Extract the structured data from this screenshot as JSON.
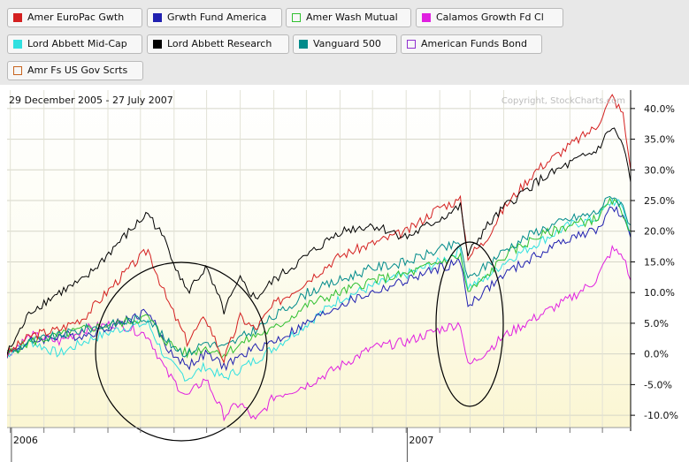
{
  "chart_data": {
    "type": "line",
    "date_range": "29 December 2005 - 27 July 2007",
    "watermark": "Copyright, StockCharts.com",
    "y_axis": {
      "ticks": [
        "40.0%",
        "35.0%",
        "30.0%",
        "25.0%",
        "20.0%",
        "15.0%",
        "10.0%",
        "5.0%",
        "0.0%",
        "-5.0%",
        "-10.0%"
      ],
      "tick_values": [
        40,
        35,
        30,
        25,
        20,
        15,
        10,
        5,
        0,
        -5,
        -10
      ],
      "ylim": [
        -12,
        43
      ],
      "position": "right"
    },
    "x_axis": {
      "labels": [
        "2006",
        "2007"
      ],
      "label_dates": [
        "2006-01-02",
        "2007-01-02"
      ],
      "xlim": [
        "2005-12-29",
        "2007-07-27"
      ]
    },
    "legend_placement": "top",
    "series": [
      {
        "name": "Amer EuroPac Gwth",
        "color": "#d42020",
        "swatch_fill": true,
        "points": [
          [
            "2005-12-29",
            0
          ],
          [
            "2006-01-20",
            3
          ],
          [
            "2006-02-15",
            4
          ],
          [
            "2006-03-10",
            6
          ],
          [
            "2006-04-10",
            12
          ],
          [
            "2006-05-08",
            17
          ],
          [
            "2006-05-25",
            9
          ],
          [
            "2006-06-13",
            2
          ],
          [
            "2006-06-30",
            6
          ],
          [
            "2006-07-17",
            -1
          ],
          [
            "2006-08-01",
            6
          ],
          [
            "2006-08-15",
            4
          ],
          [
            "2006-09-01",
            8
          ],
          [
            "2006-10-02",
            12
          ],
          [
            "2006-11-01",
            16
          ],
          [
            "2006-12-01",
            18
          ],
          [
            "2007-01-02",
            20
          ],
          [
            "2007-02-01",
            24
          ],
          [
            "2007-02-20",
            25
          ],
          [
            "2007-02-27",
            16
          ],
          [
            "2007-03-13",
            18
          ],
          [
            "2007-04-02",
            24
          ],
          [
            "2007-05-01",
            30
          ],
          [
            "2007-06-01",
            34
          ],
          [
            "2007-06-25",
            37
          ],
          [
            "2007-07-10",
            42
          ],
          [
            "2007-07-20",
            39
          ],
          [
            "2007-07-27",
            30
          ]
        ]
      },
      {
        "name": "Grwth Fund America",
        "color": "#2020b0",
        "swatch_fill": true,
        "points": [
          [
            "2005-12-29",
            0
          ],
          [
            "2006-01-20",
            2
          ],
          [
            "2006-02-15",
            3
          ],
          [
            "2006-03-10",
            3
          ],
          [
            "2006-04-10",
            5
          ],
          [
            "2006-05-08",
            7
          ],
          [
            "2006-05-25",
            1
          ],
          [
            "2006-06-13",
            -2
          ],
          [
            "2006-06-30",
            0
          ],
          [
            "2006-07-17",
            -2
          ],
          [
            "2006-08-15",
            1
          ],
          [
            "2006-09-01",
            2
          ],
          [
            "2006-10-02",
            5
          ],
          [
            "2006-11-01",
            8
          ],
          [
            "2006-12-01",
            10
          ],
          [
            "2007-01-02",
            12
          ],
          [
            "2007-02-01",
            14
          ],
          [
            "2007-02-20",
            15
          ],
          [
            "2007-02-27",
            8
          ],
          [
            "2007-03-13",
            10
          ],
          [
            "2007-04-02",
            13
          ],
          [
            "2007-05-01",
            16
          ],
          [
            "2007-06-01",
            19
          ],
          [
            "2007-06-25",
            20
          ],
          [
            "2007-07-10",
            24
          ],
          [
            "2007-07-20",
            22
          ],
          [
            "2007-07-27",
            19
          ]
        ]
      },
      {
        "name": "Amer Wash Mutual",
        "color": "#30c030",
        "swatch_fill": false,
        "points": [
          [
            "2005-12-29",
            0
          ],
          [
            "2006-01-20",
            2
          ],
          [
            "2006-02-15",
            3
          ],
          [
            "2006-03-10",
            4
          ],
          [
            "2006-04-10",
            5
          ],
          [
            "2006-05-08",
            6
          ],
          [
            "2006-05-25",
            2
          ],
          [
            "2006-06-13",
            0
          ],
          [
            "2006-06-30",
            1
          ],
          [
            "2006-07-17",
            0
          ],
          [
            "2006-08-15",
            3
          ],
          [
            "2006-09-01",
            4
          ],
          [
            "2006-10-02",
            8
          ],
          [
            "2006-11-01",
            10
          ],
          [
            "2006-12-01",
            12
          ],
          [
            "2007-01-02",
            13
          ],
          [
            "2007-02-01",
            15
          ],
          [
            "2007-02-20",
            16
          ],
          [
            "2007-02-27",
            10
          ],
          [
            "2007-03-13",
            12
          ],
          [
            "2007-04-02",
            16
          ],
          [
            "2007-05-01",
            19
          ],
          [
            "2007-06-01",
            21
          ],
          [
            "2007-06-25",
            22
          ],
          [
            "2007-07-10",
            25
          ],
          [
            "2007-07-20",
            23
          ],
          [
            "2007-07-27",
            20
          ]
        ]
      },
      {
        "name": "Calamos Growth Fd Cl",
        "color": "#e020e0",
        "swatch_fill": true,
        "points": [
          [
            "2005-12-29",
            0
          ],
          [
            "2006-01-20",
            3
          ],
          [
            "2006-02-15",
            2
          ],
          [
            "2006-03-10",
            4
          ],
          [
            "2006-04-10",
            5
          ],
          [
            "2006-05-08",
            3
          ],
          [
            "2006-05-25",
            -3
          ],
          [
            "2006-06-13",
            -7
          ],
          [
            "2006-06-30",
            -4
          ],
          [
            "2006-07-17",
            -10
          ],
          [
            "2006-08-01",
            -8
          ],
          [
            "2006-08-15",
            -11
          ],
          [
            "2006-09-01",
            -7
          ],
          [
            "2006-10-02",
            -5
          ],
          [
            "2006-11-01",
            -2
          ],
          [
            "2006-12-01",
            1
          ],
          [
            "2007-01-02",
            2
          ],
          [
            "2007-02-01",
            4
          ],
          [
            "2007-02-20",
            5
          ],
          [
            "2007-02-27",
            -2
          ],
          [
            "2007-03-13",
            0
          ],
          [
            "2007-04-02",
            3
          ],
          [
            "2007-05-01",
            6
          ],
          [
            "2007-06-01",
            9
          ],
          [
            "2007-06-25",
            12
          ],
          [
            "2007-07-10",
            17
          ],
          [
            "2007-07-20",
            16
          ],
          [
            "2007-07-27",
            12
          ]
        ]
      },
      {
        "name": "Lord Abbett Mid-Cap",
        "color": "#30e0e0",
        "swatch_fill": true,
        "points": [
          [
            "2005-12-29",
            0
          ],
          [
            "2006-01-20",
            2
          ],
          [
            "2006-02-15",
            0
          ],
          [
            "2006-03-10",
            2
          ],
          [
            "2006-04-10",
            4
          ],
          [
            "2006-05-08",
            5
          ],
          [
            "2006-05-25",
            -1
          ],
          [
            "2006-06-13",
            -4
          ],
          [
            "2006-06-30",
            -2
          ],
          [
            "2006-07-17",
            -4
          ],
          [
            "2006-08-15",
            -1
          ],
          [
            "2006-09-01",
            1
          ],
          [
            "2006-10-02",
            5
          ],
          [
            "2006-11-01",
            9
          ],
          [
            "2006-12-01",
            11
          ],
          [
            "2007-01-02",
            13
          ],
          [
            "2007-02-01",
            15
          ],
          [
            "2007-02-20",
            17
          ],
          [
            "2007-02-27",
            11
          ],
          [
            "2007-03-13",
            12
          ],
          [
            "2007-04-02",
            15
          ],
          [
            "2007-05-01",
            18
          ],
          [
            "2007-06-01",
            21
          ],
          [
            "2007-06-25",
            22
          ],
          [
            "2007-07-10",
            25
          ],
          [
            "2007-07-20",
            24
          ],
          [
            "2007-07-27",
            19
          ]
        ]
      },
      {
        "name": "Lord Abbett Research",
        "color": "#000000",
        "swatch_fill": true,
        "points": [
          [
            "2005-12-29",
            0
          ],
          [
            "2006-01-20",
            7
          ],
          [
            "2006-02-15",
            10
          ],
          [
            "2006-03-10",
            12
          ],
          [
            "2006-04-10",
            18
          ],
          [
            "2006-05-08",
            23
          ],
          [
            "2006-05-25",
            18
          ],
          [
            "2006-06-13",
            10
          ],
          [
            "2006-06-30",
            14
          ],
          [
            "2006-07-17",
            7
          ],
          [
            "2006-08-01",
            12
          ],
          [
            "2006-08-15",
            9
          ],
          [
            "2006-09-01",
            12
          ],
          [
            "2006-10-02",
            16
          ],
          [
            "2006-11-01",
            20
          ],
          [
            "2006-12-01",
            21
          ],
          [
            "2007-01-02",
            19
          ],
          [
            "2007-02-01",
            22
          ],
          [
            "2007-02-20",
            24
          ],
          [
            "2007-02-27",
            16
          ],
          [
            "2007-03-13",
            20
          ],
          [
            "2007-04-02",
            24
          ],
          [
            "2007-05-01",
            28
          ],
          [
            "2007-06-01",
            31
          ],
          [
            "2007-06-25",
            33
          ],
          [
            "2007-07-10",
            37
          ],
          [
            "2007-07-20",
            34
          ],
          [
            "2007-07-27",
            28
          ]
        ]
      },
      {
        "name": "Vanguard 500",
        "color": "#008b8b",
        "swatch_fill": true,
        "points": [
          [
            "2005-12-29",
            0
          ],
          [
            "2006-01-20",
            2
          ],
          [
            "2006-02-15",
            3
          ],
          [
            "2006-03-10",
            4
          ],
          [
            "2006-04-10",
            5
          ],
          [
            "2006-05-08",
            6
          ],
          [
            "2006-05-25",
            2
          ],
          [
            "2006-06-13",
            0
          ],
          [
            "2006-06-30",
            2
          ],
          [
            "2006-07-17",
            1
          ],
          [
            "2006-08-15",
            4
          ],
          [
            "2006-09-01",
            6
          ],
          [
            "2006-10-02",
            10
          ],
          [
            "2006-11-01",
            12
          ],
          [
            "2006-12-01",
            14
          ],
          [
            "2007-01-02",
            15
          ],
          [
            "2007-02-01",
            17
          ],
          [
            "2007-02-20",
            18
          ],
          [
            "2007-02-27",
            12
          ],
          [
            "2007-03-13",
            14
          ],
          [
            "2007-04-02",
            17
          ],
          [
            "2007-05-01",
            20
          ],
          [
            "2007-06-01",
            22
          ],
          [
            "2007-06-25",
            23
          ],
          [
            "2007-07-10",
            26
          ],
          [
            "2007-07-20",
            24
          ],
          [
            "2007-07-27",
            21
          ]
        ]
      },
      {
        "name": "American Funds Bond",
        "color": "#9030d0",
        "swatch_fill": false,
        "points": []
      },
      {
        "name": "Amr Fs US Gov Scrts",
        "color": "#c86420",
        "swatch_fill": false,
        "points": []
      }
    ]
  }
}
